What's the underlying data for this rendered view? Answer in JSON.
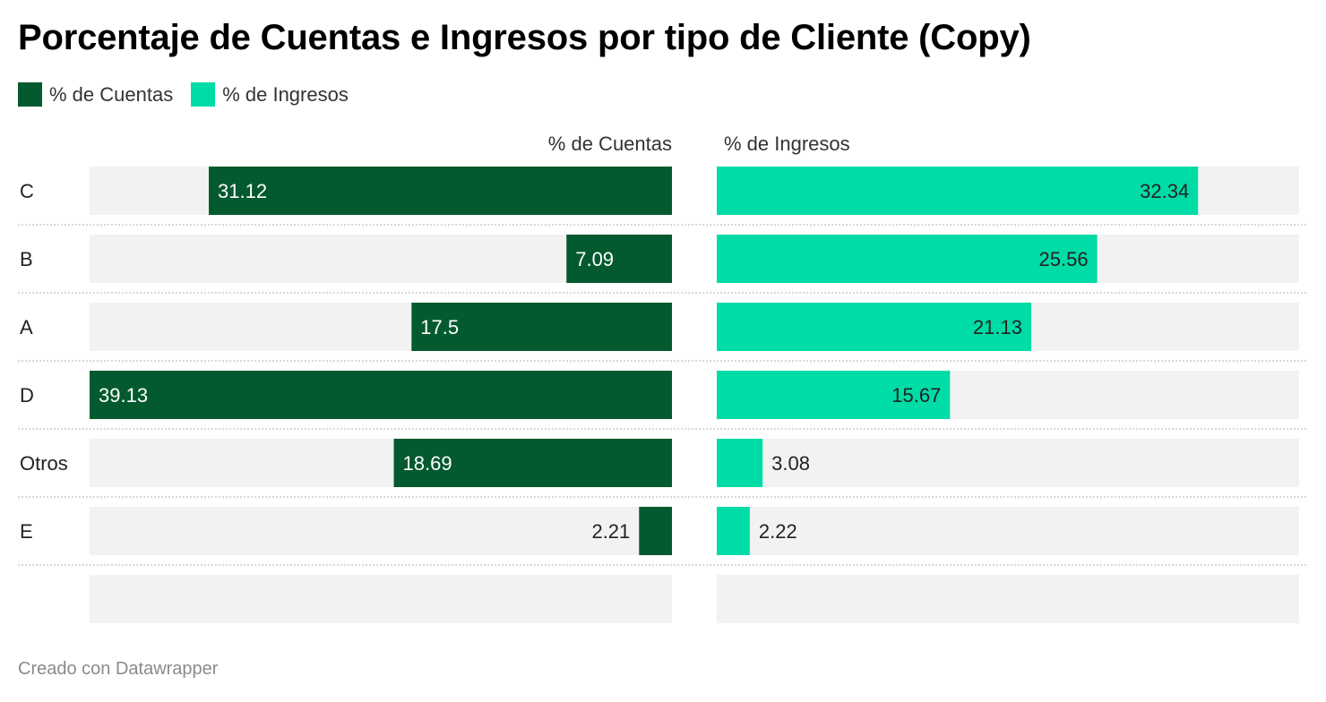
{
  "chart_data": {
    "type": "bar",
    "title": "Porcentaje de Cuentas e Ingresos por tipo de Cliente (Copy)",
    "categories": [
      "C",
      "B",
      "A",
      "D",
      "Otros",
      "E",
      ""
    ],
    "series": [
      {
        "name": "% de Cuentas",
        "values": [
          31.12,
          7.09,
          17.5,
          39.13,
          18.69,
          2.21,
          null
        ],
        "color": "#045a2f",
        "direction": "right-to-left"
      },
      {
        "name": "% de Ingresos",
        "values": [
          32.34,
          25.56,
          21.13,
          15.67,
          3.08,
          2.22,
          null
        ],
        "color": "#00dca6",
        "direction": "left-to-right"
      }
    ],
    "xlim": [
      0,
      39.13
    ],
    "legend_position": "top-left",
    "grid": false,
    "colors": {
      "background_track": "#f2f2f2",
      "separator": "#cccccc"
    }
  },
  "legend": [
    {
      "label": "% de Cuentas",
      "color": "#045a2f"
    },
    {
      "label": "% de Ingresos",
      "color": "#00dca6"
    }
  ],
  "headers": {
    "left": "% de Cuentas",
    "right": "% de Ingresos"
  },
  "footer": "Creado con Datawrapper"
}
